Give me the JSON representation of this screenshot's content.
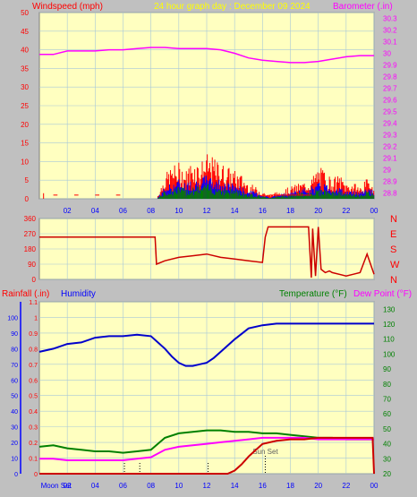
{
  "header": {
    "left_label": "Windspeed (mph)",
    "center_label": "24 hour graph day : December 09 2024",
    "right_label": "Barometer (.in)"
  },
  "colors": {
    "background": "#c0c0c0",
    "plot_bg": "#ffffc0",
    "grid": "#a8c8d8",
    "windspeed": "#ff0000",
    "gust_avg": "#0000ff",
    "wind_low": "#008000",
    "barometer": "#ff00ff",
    "direction": "#cc0000",
    "humidity": "#0000cc",
    "temperature": "#008000",
    "dew_point": "#ff00ff",
    "rainfall": "#cc0000",
    "header_yellow": "#ffff00",
    "axis_blue": "#0000ff",
    "axis_red": "#ff0000",
    "axis_green": "#008000"
  },
  "chart_data": [
    {
      "type": "line",
      "name": "wind-barometer",
      "x_ticks": [
        "02",
        "04",
        "06",
        "08",
        "10",
        "12",
        "14",
        "16",
        "18",
        "20",
        "22",
        "00"
      ],
      "left_axis": {
        "label": "Windspeed (mph)",
        "ticks": [
          "0",
          "5",
          "10",
          "15",
          "20",
          "25",
          "30",
          "35",
          "40",
          "45",
          "50"
        ],
        "ylim": [
          0,
          50
        ]
      },
      "right_axis": {
        "label": "Barometer (.in)",
        "ticks": [
          "28.8",
          "28.9",
          "29",
          "29.1",
          "29.2",
          "29.3",
          "29.4",
          "29.5",
          "29.6",
          "29.7",
          "29.8",
          "29.9",
          "30",
          "30.1",
          "30.2",
          "30.3"
        ],
        "ylim": [
          28.75,
          30.35
        ]
      },
      "barometer_series": {
        "x": [
          0,
          1,
          2,
          3,
          4,
          5,
          6,
          7,
          8,
          9,
          10,
          11,
          12,
          13,
          14,
          15,
          16,
          17,
          18,
          19,
          20,
          21,
          22,
          23,
          24
        ],
        "y": [
          29.99,
          29.99,
          30.02,
          30.02,
          30.02,
          30.03,
          30.03,
          30.04,
          30.05,
          30.05,
          30.04,
          30.04,
          30.04,
          30.03,
          30.0,
          29.96,
          29.94,
          29.93,
          29.92,
          29.92,
          29.93,
          29.95,
          29.97,
          29.98,
          29.98
        ]
      },
      "wind_gust_profile": {
        "x": [
          8.5,
          9,
          9.5,
          10,
          10.5,
          11,
          11.5,
          12,
          12.5,
          13,
          13.5,
          14,
          14.5,
          15,
          15.5,
          16,
          16.5,
          19.5,
          20,
          20.5,
          21,
          21.5,
          22,
          22.5,
          23,
          23.5,
          24
        ],
        "y": [
          1,
          6,
          8,
          9,
          7,
          10,
          9,
          11,
          10,
          9,
          8,
          7,
          6,
          4,
          3,
          2,
          1,
          5,
          8,
          7,
          5,
          6,
          4,
          4,
          3,
          5,
          4
        ]
      },
      "wind_avg_profile": {
        "x": [
          8.5,
          9,
          9.5,
          10,
          10.5,
          11,
          11.5,
          12,
          12.5,
          13,
          13.5,
          14,
          14.5,
          15,
          15.5,
          16,
          16.5,
          19.5,
          20,
          20.5,
          21,
          21.5,
          22,
          22.5,
          23,
          23.5,
          24
        ],
        "y": [
          0.5,
          3,
          4,
          5,
          4,
          5,
          5,
          6,
          5,
          5,
          4,
          4,
          3,
          2,
          2,
          1,
          0.5,
          3,
          4,
          4,
          3,
          3,
          2,
          2,
          2,
          3,
          2
        ]
      }
    },
    {
      "type": "line",
      "name": "wind-direction",
      "left_axis": {
        "ticks": [
          "0",
          "90",
          "180",
          "270",
          "360"
        ],
        "ylim": [
          0,
          360
        ]
      },
      "right_labels": [
        "N",
        "W",
        "S",
        "E",
        "N"
      ],
      "series": {
        "x": [
          0,
          8.3,
          8.4,
          9,
          10,
          11,
          12,
          13,
          14,
          15,
          16,
          16.2,
          16.4,
          16.6,
          19.3,
          19.5,
          19.6,
          19.8,
          20,
          20.2,
          20.5,
          20.8,
          21,
          22,
          22.5,
          23,
          23.5,
          24
        ],
        "y": [
          250,
          250,
          90,
          110,
          130,
          140,
          150,
          130,
          120,
          110,
          100,
          250,
          310,
          310,
          310,
          10,
          300,
          20,
          310,
          60,
          40,
          50,
          40,
          20,
          30,
          40,
          150,
          30
        ]
      }
    },
    {
      "type": "line",
      "name": "humidity-temperature-rain",
      "labels": {
        "rainfall": "Rainfall (.in)",
        "humidity": "Humidity",
        "temperature": "Temperature (°F)",
        "dew_point": "Dew Point (°F)"
      },
      "left_blue_ticks": [
        "0",
        "10",
        "20",
        "30",
        "40",
        "50",
        "60",
        "70",
        "80",
        "90",
        "100"
      ],
      "left_red_ticks": [
        "0",
        "0.1",
        "0.2",
        "0.3",
        "0.4",
        "0.5",
        "0.6",
        "0.7",
        "0.8",
        "0.9",
        "1",
        "1.1"
      ],
      "right_ticks": [
        "20",
        "30",
        "40",
        "50",
        "60",
        "70",
        "80",
        "90",
        "100",
        "110",
        "120",
        "130"
      ],
      "x_ticks": [
        "02",
        "04",
        "06",
        "08",
        "10",
        "12",
        "14",
        "16",
        "18",
        "20",
        "22",
        "00"
      ],
      "events": [
        {
          "label": "Moon Set",
          "x": 1.2
        },
        {
          "label": "Sun Set",
          "x": 16.2
        }
      ],
      "humidity": {
        "x": [
          0,
          1,
          2,
          3,
          4,
          5,
          6,
          7,
          8,
          9,
          9.5,
          10,
          10.5,
          11,
          11.5,
          12,
          12.5,
          13,
          14,
          15,
          16,
          17,
          18,
          19,
          20,
          21,
          22,
          23,
          24
        ],
        "y": [
          78,
          80,
          83,
          84,
          87,
          88,
          88,
          89,
          88,
          80,
          75,
          71,
          69,
          69,
          70,
          71,
          74,
          78,
          86,
          93,
          95,
          96,
          96,
          96,
          96,
          96,
          96,
          96,
          96
        ]
      },
      "temperature": {
        "x": [
          0,
          1,
          2,
          3,
          4,
          5,
          6,
          7,
          8,
          9,
          10,
          11,
          12,
          13,
          14,
          15,
          16,
          17,
          18,
          19,
          20,
          21,
          22,
          23,
          24
        ],
        "y": [
          38,
          39,
          37,
          36,
          35,
          35,
          34,
          35,
          36,
          44,
          47,
          48,
          49,
          49,
          48,
          48,
          47,
          47,
          46,
          45,
          44,
          44,
          43,
          43,
          43
        ]
      },
      "dew_point": {
        "x": [
          0,
          1,
          2,
          3,
          4,
          5,
          6,
          7,
          8,
          9,
          10,
          11,
          12,
          13,
          14,
          15,
          16,
          17,
          18,
          19,
          20,
          21,
          22,
          23,
          24
        ],
        "y": [
          30,
          30,
          29,
          29,
          29,
          29,
          29,
          30,
          31,
          36,
          38,
          39,
          40,
          41,
          42,
          43,
          44,
          44,
          44,
          44,
          43,
          43,
          43,
          43,
          43
        ]
      },
      "rainfall": {
        "x": [
          0,
          13.5,
          14,
          14.5,
          15,
          15.5,
          16,
          17,
          18,
          19,
          20,
          21,
          22,
          23,
          23.9,
          24
        ],
        "y": [
          0,
          0,
          0.02,
          0.06,
          0.11,
          0.15,
          0.19,
          0.21,
          0.22,
          0.22,
          0.23,
          0.23,
          0.23,
          0.23,
          0.23,
          0
        ]
      }
    }
  ]
}
